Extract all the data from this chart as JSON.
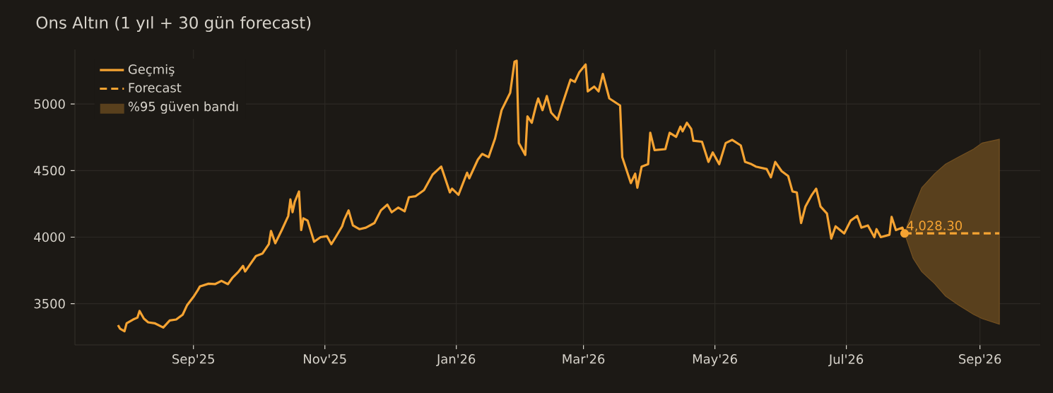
{
  "chart_data": {
    "type": "line",
    "title": "Ons Altın (1 yıl + 30 gün forecast)",
    "xlim": [
      "2025-07-08",
      "2026-09-29"
    ],
    "ylim": [
      3190,
      5410
    ],
    "xticks": [
      {
        "value": "2025-09-01",
        "label": "Sep'25"
      },
      {
        "value": "2025-11-01",
        "label": "Nov'25"
      },
      {
        "value": "2026-01-01",
        "label": "Jan'26"
      },
      {
        "value": "2026-03-01",
        "label": "Mar'26"
      },
      {
        "value": "2026-05-01",
        "label": "May'26"
      },
      {
        "value": "2026-07-01",
        "label": "Jul'26"
      },
      {
        "value": "2026-09-01",
        "label": "Sep'26"
      }
    ],
    "yticks": [
      3500,
      4000,
      4500,
      5000
    ],
    "grid": true,
    "legend": "top left",
    "series": [
      {
        "name": "Geçmiş",
        "color": "#f5a332",
        "x": [
          "2025-07-28",
          "2025-07-29",
          "2025-07-31",
          "2025-08-01",
          "2025-08-04",
          "2025-08-06",
          "2025-08-07",
          "2025-08-09",
          "2025-08-11",
          "2025-08-14",
          "2025-08-18",
          "2025-08-21",
          "2025-08-24",
          "2025-08-27",
          "2025-08-29",
          "2025-09-01",
          "2025-09-03",
          "2025-09-04",
          "2025-09-08",
          "2025-09-11",
          "2025-09-14",
          "2025-09-17",
          "2025-09-19",
          "2025-09-22",
          "2025-09-24",
          "2025-09-25",
          "2025-09-27",
          "2025-09-30",
          "2025-10-03",
          "2025-10-06",
          "2025-10-07",
          "2025-10-09",
          "2025-10-12",
          "2025-10-15",
          "2025-10-16",
          "2025-10-17",
          "2025-10-18",
          "2025-10-20",
          "2025-10-21",
          "2025-10-22",
          "2025-10-24",
          "2025-10-27",
          "2025-10-30",
          "2025-11-02",
          "2025-11-04",
          "2025-11-06",
          "2025-11-09",
          "2025-11-10",
          "2025-11-12",
          "2025-11-14",
          "2025-11-17",
          "2025-11-20",
          "2025-11-24",
          "2025-11-27",
          "2025-11-30",
          "2025-12-02",
          "2025-12-05",
          "2025-12-08",
          "2025-12-10",
          "2025-12-13",
          "2025-12-17",
          "2025-12-21",
          "2025-12-25",
          "2025-12-29",
          "2025-12-30",
          "2026-01-02",
          "2026-01-06",
          "2026-01-07",
          "2026-01-11",
          "2026-01-13",
          "2026-01-16",
          "2026-01-19",
          "2026-01-22",
          "2026-01-26",
          "2026-01-28",
          "2026-01-29",
          "2026-01-30",
          "2026-02-02",
          "2026-02-03",
          "2026-02-05",
          "2026-02-07",
          "2026-02-08",
          "2026-02-10",
          "2026-02-12",
          "2026-02-14",
          "2026-02-17",
          "2026-02-19",
          "2026-02-23",
          "2026-02-25",
          "2026-02-27",
          "2026-03-02",
          "2026-03-03",
          "2026-03-06",
          "2026-03-08",
          "2026-03-10",
          "2026-03-13",
          "2026-03-18",
          "2026-03-19",
          "2026-03-23",
          "2026-03-25",
          "2026-03-26",
          "2026-03-28",
          "2026-03-31",
          "2026-04-01",
          "2026-04-03",
          "2026-04-08",
          "2026-04-10",
          "2026-04-13",
          "2026-04-15",
          "2026-04-16",
          "2026-04-18",
          "2026-04-20",
          "2026-04-21",
          "2026-04-25",
          "2026-04-28",
          "2026-04-30",
          "2026-05-03",
          "2026-05-06",
          "2026-05-09",
          "2026-05-13",
          "2026-05-15",
          "2026-05-18",
          "2026-05-20",
          "2026-05-25",
          "2026-05-27",
          "2026-05-29",
          "2026-06-01",
          "2026-06-04",
          "2026-06-06",
          "2026-06-08",
          "2026-06-10",
          "2026-06-12",
          "2026-06-15",
          "2026-06-17",
          "2026-06-19",
          "2026-06-22",
          "2026-06-24",
          "2026-06-26",
          "2026-06-30",
          "2026-07-03",
          "2026-07-06",
          "2026-07-08",
          "2026-07-11",
          "2026-07-14",
          "2026-07-15",
          "2026-07-17",
          "2026-07-21",
          "2026-07-22",
          "2026-07-24",
          "2026-07-27",
          "2026-07-28"
        ],
        "values": [
          3339,
          3311,
          3293,
          3353,
          3381,
          3395,
          3445,
          3388,
          3360,
          3353,
          3321,
          3374,
          3381,
          3417,
          3487,
          3551,
          3601,
          3629,
          3650,
          3647,
          3671,
          3647,
          3692,
          3742,
          3784,
          3742,
          3788,
          3858,
          3876,
          3947,
          4046,
          3954,
          4053,
          4159,
          4283,
          4187,
          4265,
          4343,
          4053,
          4141,
          4124,
          3965,
          4000,
          4007,
          3947,
          4000,
          4081,
          4131,
          4201,
          4088,
          4060,
          4071,
          4106,
          4201,
          4244,
          4187,
          4222,
          4194,
          4300,
          4307,
          4353,
          4470,
          4530,
          4336,
          4364,
          4318,
          4484,
          4442,
          4583,
          4625,
          4601,
          4742,
          4954,
          5085,
          5318,
          5325,
          4707,
          4618,
          4908,
          4859,
          4989,
          5042,
          4954,
          5060,
          4936,
          4883,
          4989,
          5184,
          5166,
          5237,
          5297,
          5095,
          5131,
          5095,
          5226,
          5042,
          4989,
          4601,
          4406,
          4477,
          4371,
          4530,
          4548,
          4784,
          4654,
          4661,
          4784,
          4753,
          4830,
          4795,
          4859,
          4813,
          4724,
          4717,
          4565,
          4636,
          4548,
          4707,
          4731,
          4689,
          4565,
          4548,
          4530,
          4512,
          4449,
          4565,
          4495,
          4459,
          4343,
          4336,
          4106,
          4230,
          4318,
          4364,
          4230,
          4177,
          3989,
          4081,
          4028,
          4124,
          4159,
          4071,
          4088,
          4000,
          4060,
          4000,
          4018,
          4152,
          4053,
          4071,
          4028.3
        ]
      },
      {
        "name": "Forecast",
        "color": "#f5a332",
        "line_style": "dashed",
        "x": [
          "2026-07-28",
          "2026-08-01",
          "2026-08-05",
          "2026-08-11",
          "2026-08-16",
          "2026-08-22",
          "2026-08-29",
          "2026-09-02",
          "2026-09-10"
        ],
        "values": [
          4028.3,
          4028.3,
          4028.3,
          4028.3,
          4028.3,
          4028.3,
          4028.3,
          4028.3,
          4028.3
        ],
        "lower": [
          4028.3,
          3841,
          3740,
          3650,
          3558,
          3490,
          3420,
          3388,
          3346
        ],
        "upper": [
          4028.3,
          4212,
          4371,
          4477,
          4548,
          4601,
          4661,
          4707,
          4735
        ]
      }
    ],
    "annotations": [
      {
        "text": "4,028.30",
        "x": "2026-07-28",
        "y": 4028.3
      },
      "%95 güven bandı"
    ]
  }
}
